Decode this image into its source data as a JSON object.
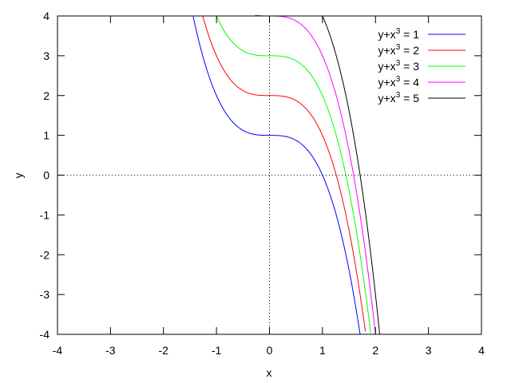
{
  "chart_data": {
    "type": "line",
    "title": "",
    "xlabel": "x",
    "ylabel": "y",
    "xlim": [
      -4,
      4
    ],
    "ylim": [
      -4,
      4
    ],
    "xticks": [
      -4,
      -3,
      -2,
      -1,
      0,
      1,
      2,
      3,
      4
    ],
    "yticks": [
      -4,
      -3,
      -2,
      -1,
      0,
      1,
      2,
      3,
      4
    ],
    "xtick_labels": [
      "-4",
      "-3",
      "-2",
      "-1",
      "0",
      "1",
      "2",
      "3",
      "4"
    ],
    "ytick_labels": [
      "-4",
      "-3",
      "-2",
      "-1",
      "0",
      "1",
      "2",
      "3",
      "4"
    ],
    "grid": false,
    "zero_axes": true,
    "legend_position": "top-right",
    "series": [
      {
        "name": "y+x³ = 1",
        "name_base": "y+x",
        "name_sup": "3",
        "name_rest": " = 1",
        "c": 1,
        "color": "#0000ff"
      },
      {
        "name": "y+x³ = 2",
        "name_base": "y+x",
        "name_sup": "3",
        "name_rest": " = 2",
        "c": 2,
        "color": "#ff0000"
      },
      {
        "name": "y+x³ = 3",
        "name_base": "y+x",
        "name_sup": "3",
        "name_rest": " = 3",
        "c": 3,
        "color": "#00ff00"
      },
      {
        "name": "y+x³ = 4",
        "name_base": "y+x",
        "name_sup": "3",
        "name_rest": " = 4",
        "c": 4,
        "color": "#ff00ff"
      },
      {
        "name": "y+x³ = 5",
        "name_base": "y+x",
        "name_sup": "3",
        "name_rest": " = 5",
        "c": 5,
        "color": "#000000"
      }
    ]
  }
}
